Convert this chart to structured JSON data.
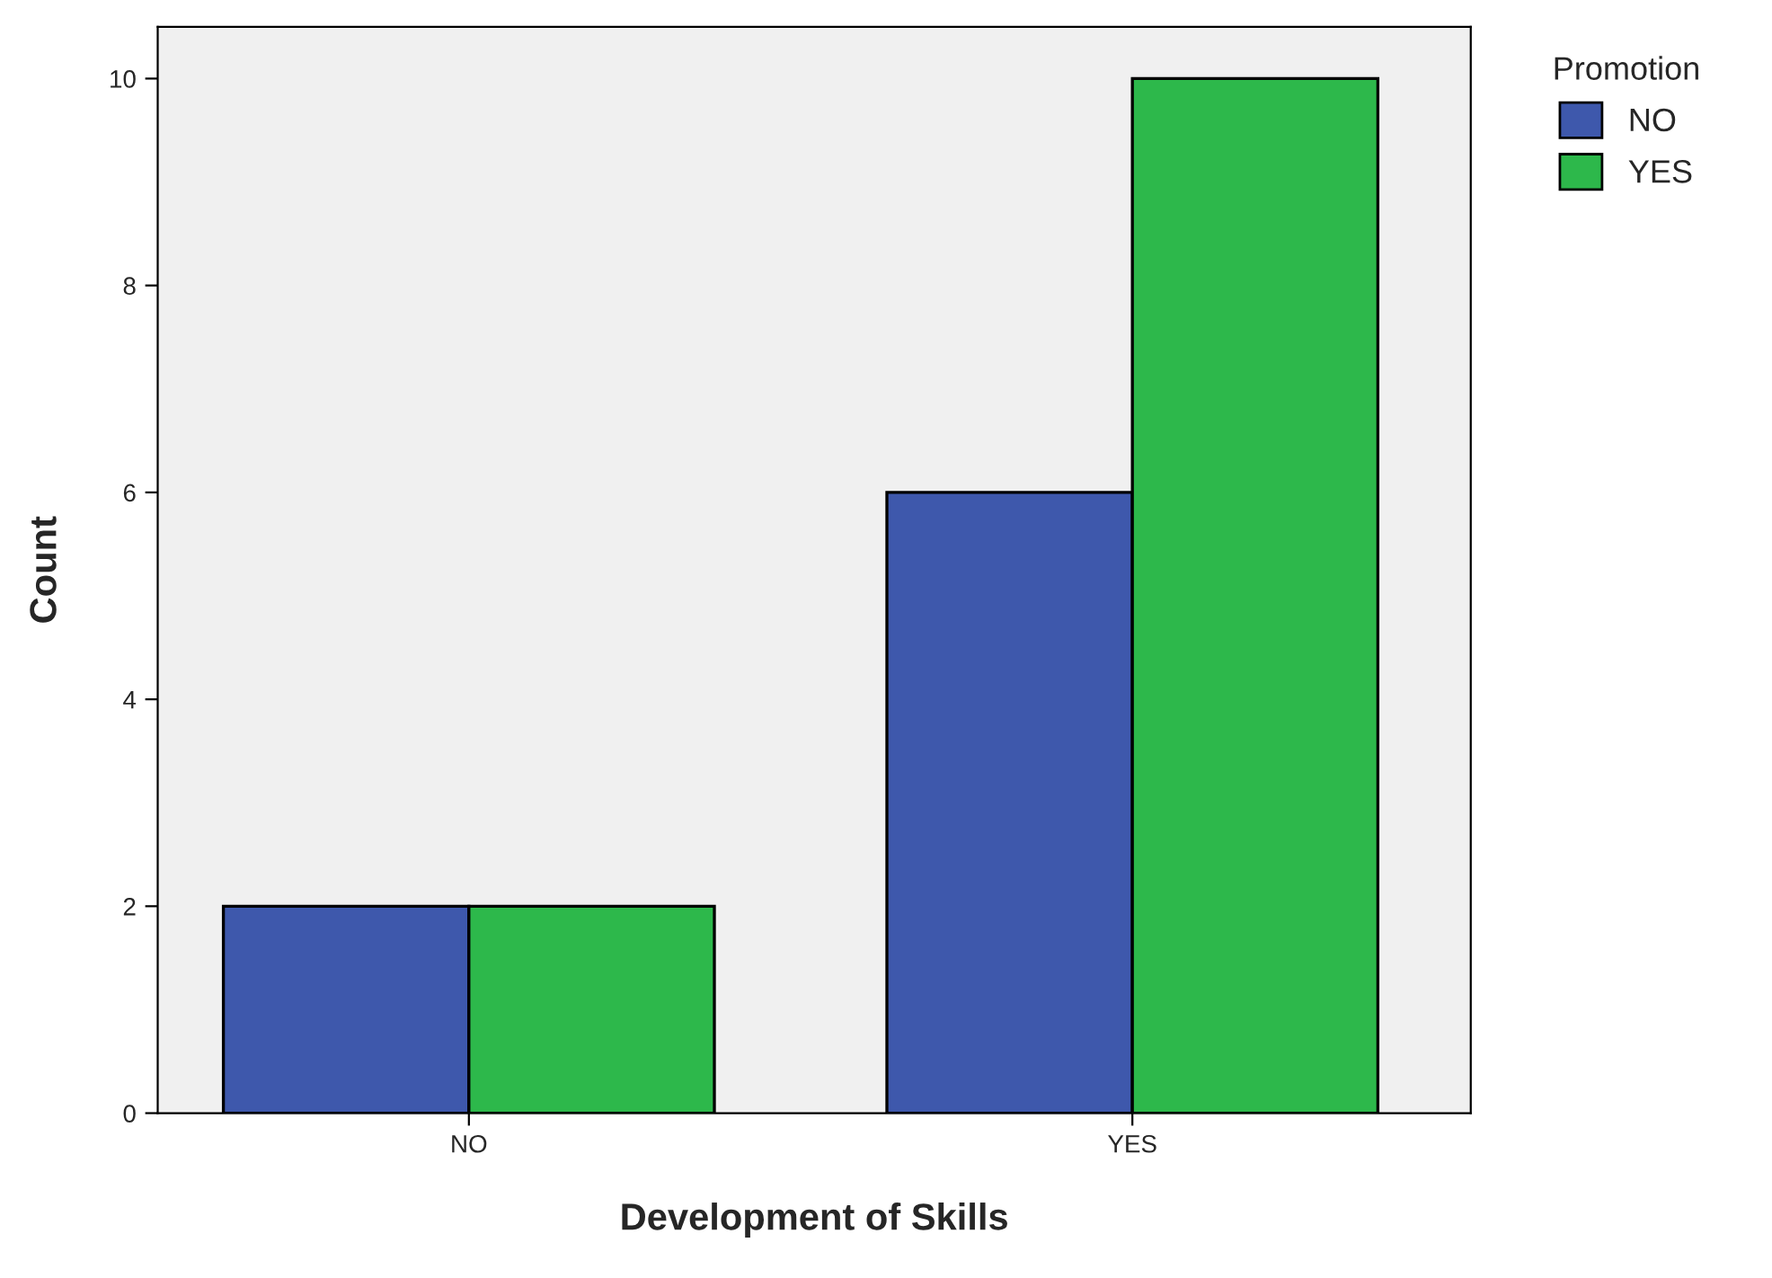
{
  "chart_data": {
    "type": "bar",
    "xlabel": "Development of Skills",
    "ylabel": "Count",
    "legend_title": "Promotion",
    "categories": [
      "NO",
      "YES"
    ],
    "series": [
      {
        "name": "NO",
        "color": "#3e58ac",
        "values": [
          2,
          6
        ]
      },
      {
        "name": "YES",
        "color": "#2db84b",
        "values": [
          2,
          10
        ]
      }
    ],
    "ylim": [
      0,
      10.5
    ],
    "yticks": [
      0,
      2,
      4,
      6,
      8,
      10
    ],
    "grid": false,
    "legend": "top right"
  }
}
